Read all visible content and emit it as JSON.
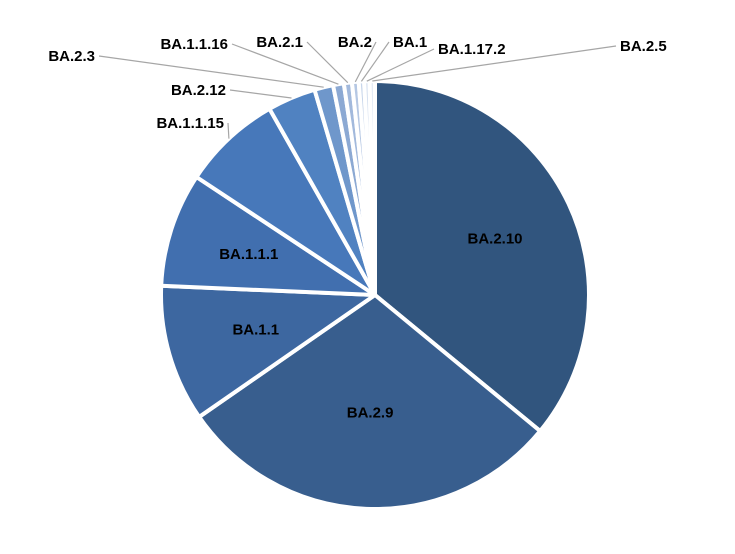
{
  "chart_data": {
    "type": "pie",
    "title": "",
    "start_angle_deg": 0,
    "direction": "clockwise",
    "legend": "none",
    "slices": [
      {
        "label": "BA.2.10",
        "value": 35.5,
        "color": "#31557e"
      },
      {
        "label": "BA.2.9",
        "value": 29.0,
        "color": "#385e8e"
      },
      {
        "label": "BA.1.1",
        "value": 10.2,
        "color": "#3d67a0"
      },
      {
        "label": "BA.1.1.1",
        "value": 8.5,
        "color": "#416faf"
      },
      {
        "label": "BA.1.1.15",
        "value": 7.4,
        "color": "#4778ba"
      },
      {
        "label": "BA.2.12",
        "value": 3.6,
        "color": "#5082c1"
      },
      {
        "label": "BA.2.3",
        "value": 1.4,
        "color": "#6f97cb"
      },
      {
        "label": "BA.1.1.16",
        "value": 0.8,
        "color": "#8ca9d3"
      },
      {
        "label": "BA.2.1",
        "value": 0.6,
        "color": "#a2b9dc"
      },
      {
        "label": "BA.2",
        "value": 0.5,
        "color": "#b5c7e3"
      },
      {
        "label": "BA.1",
        "value": 0.4,
        "color": "#c7d5ea"
      },
      {
        "label": "BA.1.17.2",
        "value": 0.4,
        "color": "#d7e1f0"
      },
      {
        "label": "BA.2.5",
        "value": 0.4,
        "color": "#e4ebf5"
      }
    ]
  }
}
